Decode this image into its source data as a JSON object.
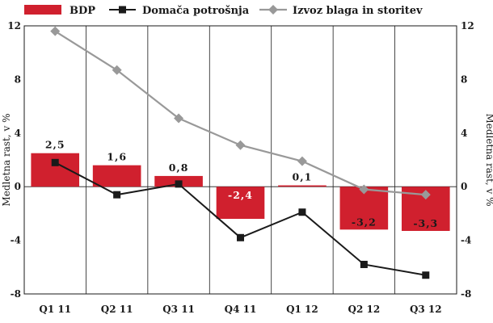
{
  "chart_data": {
    "type": "bar",
    "categories": [
      "Q1 11",
      "Q2 11",
      "Q3 11",
      "Q4 11",
      "Q1 12",
      "Q2 12",
      "Q3 12"
    ],
    "series": [
      {
        "name": "BDP",
        "type": "bar",
        "color": "#d0202e",
        "values": [
          2.5,
          1.6,
          0.8,
          -2.4,
          0.1,
          -3.2,
          -3.3
        ],
        "labels": [
          "2,5",
          "1,6",
          "0,8",
          "-2,4",
          "0,1",
          "-3,2",
          "-3,3"
        ]
      },
      {
        "name": "Domača potrošnja",
        "type": "line",
        "color": "#1a1a1a",
        "marker": "square",
        "values": [
          1.8,
          -0.6,
          0.2,
          -3.8,
          -1.9,
          -5.8,
          -6.6
        ]
      },
      {
        "name": "Izvoz blaga in storitev",
        "type": "line",
        "color": "#999999",
        "marker": "diamond",
        "values": [
          11.6,
          8.7,
          5.1,
          3.1,
          1.9,
          -0.2,
          -0.6
        ]
      }
    ],
    "ylim": [
      -8,
      12
    ],
    "yticks": [
      -8,
      -4,
      0,
      4,
      8,
      12
    ],
    "ytick_labels": [
      "-8",
      "-4",
      "0",
      "4",
      "8",
      "12"
    ],
    "ylabel": "Medletna rast, v %",
    "ylabel_right": "Medletna rast, v %",
    "grid": "vertical",
    "legend": "top"
  }
}
